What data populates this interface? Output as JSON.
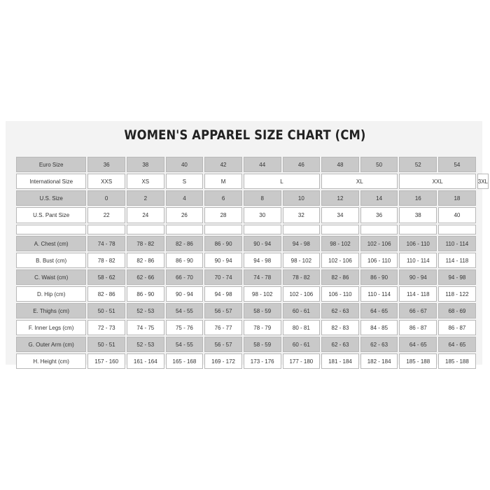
{
  "title": "WOMEN'S APPAREL SIZE CHART (CM)",
  "euro": {
    "label": "Euro Size",
    "values": [
      "36",
      "38",
      "40",
      "42",
      "44",
      "46",
      "48",
      "50",
      "52",
      "54"
    ]
  },
  "intl": {
    "label": "International Size",
    "values": [
      "XXS",
      "XS",
      "S",
      "M",
      "L",
      "XL",
      "XXL",
      "3XL"
    ]
  },
  "us": {
    "label": "U.S. Size",
    "values": [
      "0",
      "2",
      "4",
      "6",
      "8",
      "10",
      "12",
      "14",
      "16",
      "18"
    ]
  },
  "pant": {
    "label": "U.S. Pant Size",
    "values": [
      "22",
      "24",
      "26",
      "28",
      "30",
      "32",
      "34",
      "36",
      "38",
      "40"
    ]
  },
  "measurements": [
    {
      "label": "A. Chest (cm)",
      "values": [
        "74 - 78",
        "78 - 82",
        "82 - 86",
        "86 - 90",
        "90 - 94",
        "94 - 98",
        "98 - 102",
        "102 - 106",
        "106 - 110",
        "110 - 114"
      ]
    },
    {
      "label": "B. Bust (cm)",
      "values": [
        "78 - 82",
        "82 - 86",
        "86 - 90",
        "90 - 94",
        "94 - 98",
        "98 - 102",
        "102 - 106",
        "106 - 110",
        "110 - 114",
        "114 - 118"
      ]
    },
    {
      "label": "C. Waist (cm)",
      "values": [
        "58 - 62",
        "62 - 66",
        "66 - 70",
        "70 - 74",
        "74 - 78",
        "78 - 82",
        "82 - 86",
        "86 - 90",
        "90 - 94",
        "94 - 98"
      ]
    },
    {
      "label": "D. Hip (cm)",
      "values": [
        "82 - 86",
        "86 - 90",
        "90 - 94",
        "94 - 98",
        "98 - 102",
        "102 - 106",
        "106 - 110",
        "110 - 114",
        "114 - 118",
        "118 - 122"
      ]
    },
    {
      "label": "E. Thighs (cm)",
      "values": [
        "50 - 51",
        "52 - 53",
        "54 - 55",
        "56 - 57",
        "58 - 59",
        "60 - 61",
        "62 - 63",
        "64 - 65",
        "66 - 67",
        "68 - 69"
      ]
    },
    {
      "label": "F. Inner Legs (cm)",
      "values": [
        "72 - 73",
        "74 - 75",
        "75 - 76",
        "76 - 77",
        "78 - 79",
        "80 - 81",
        "82 - 83",
        "84 - 85",
        "86 - 87",
        "86 - 87"
      ]
    },
    {
      "label": "G. Outer Arm (cm)",
      "values": [
        "50 - 51",
        "52 - 53",
        "54 - 55",
        "56 - 57",
        "58 - 59",
        "60 - 61",
        "62 - 63",
        "62 - 63",
        "64 - 65",
        "64 - 65"
      ]
    },
    {
      "label": "H. Height (cm)",
      "values": [
        "157 - 160",
        "161 - 164",
        "165 - 168",
        "169 - 172",
        "173 - 176",
        "177 - 180",
        "181 - 184",
        "182 - 184",
        "185 - 188",
        "185 - 188"
      ]
    }
  ]
}
